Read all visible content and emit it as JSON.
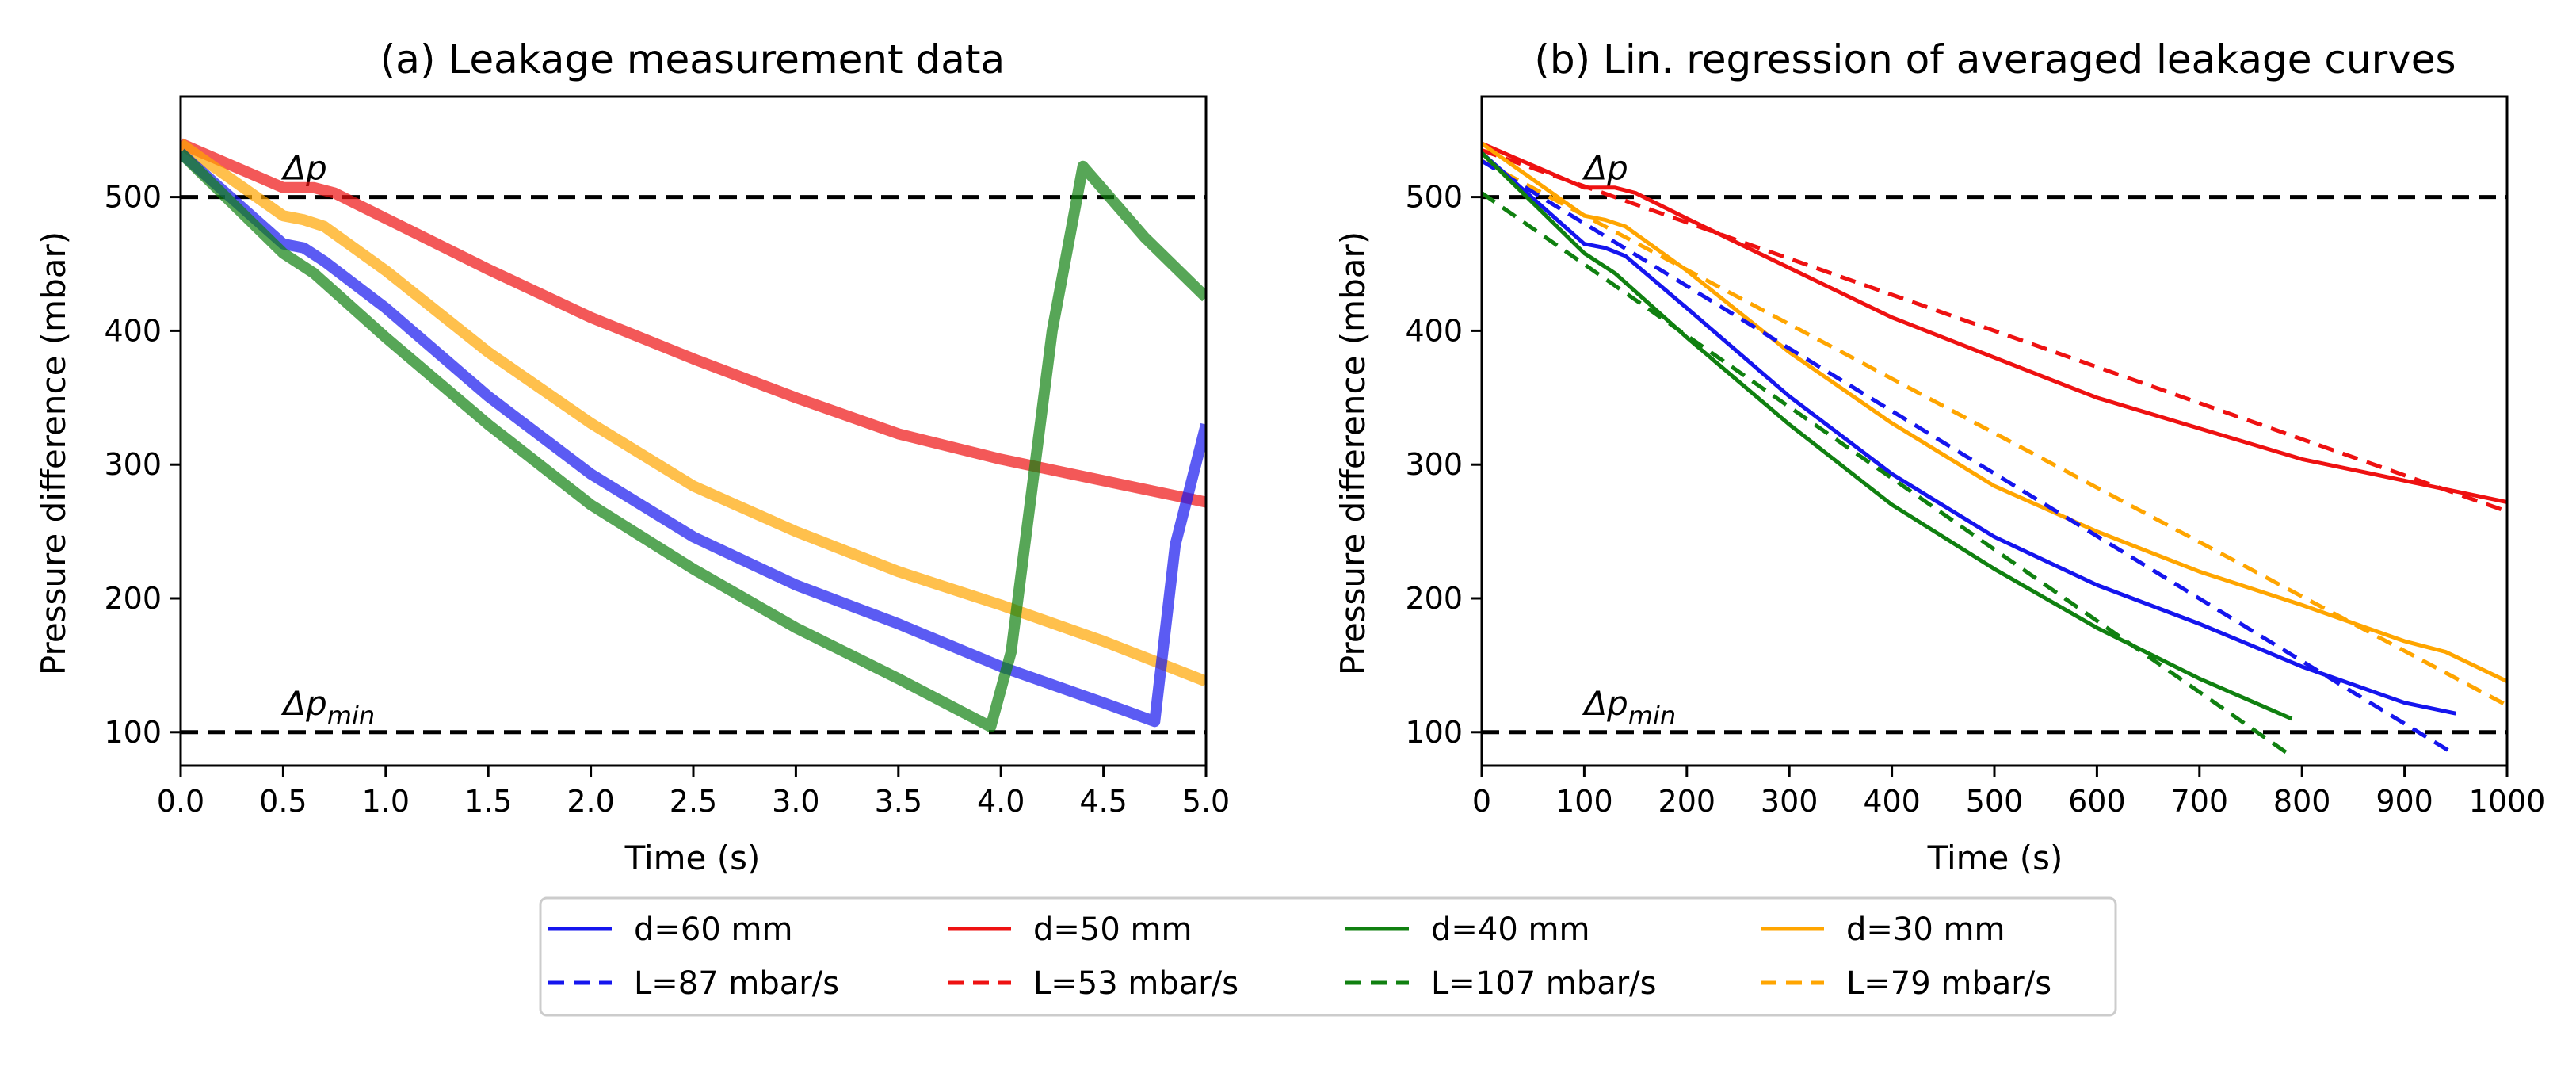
{
  "chart_data": [
    {
      "type": "line",
      "title": "(a) Leakage measurement data",
      "xlabel": "Time (s)",
      "ylabel": "Pressure difference (mbar)",
      "xlim": [
        0,
        5
      ],
      "ylim": [
        75,
        575
      ],
      "xticks": [
        0.0,
        0.5,
        1.0,
        1.5,
        2.0,
        2.5,
        3.0,
        3.5,
        4.0,
        4.5,
        5.0
      ],
      "xtick_labels": [
        "0.0",
        "0.5",
        "1.0",
        "1.5",
        "2.0",
        "2.5",
        "3.0",
        "3.5",
        "4.0",
        "4.5",
        "5.0"
      ],
      "yticks": [
        100,
        200,
        300,
        400,
        500
      ],
      "ytick_labels": [
        "100",
        "200",
        "300",
        "400",
        "500"
      ],
      "reference_lines": [
        {
          "y": 500,
          "label": "Δp",
          "label_main": "Δp",
          "label_sub": ""
        },
        {
          "y": 100,
          "label": "Δpmin",
          "label_main": "Δp",
          "label_sub": "min"
        }
      ],
      "series": [
        {
          "name": "d=50 mm",
          "color": "#ee1111",
          "style": "solid",
          "x": [
            0,
            0.5,
            0.65,
            0.75,
            1.0,
            1.5,
            2.0,
            2.5,
            3.0,
            3.5,
            4.0,
            4.5,
            5.0
          ],
          "y": [
            540,
            507,
            507,
            503,
            484,
            446,
            410,
            379,
            350,
            323,
            304,
            288,
            272
          ]
        },
        {
          "name": "d=30 mm",
          "color": "#ffa500",
          "style": "solid",
          "x": [
            0,
            0.5,
            0.6,
            0.7,
            1.0,
            1.5,
            2.0,
            2.5,
            3.0,
            3.5,
            4.0,
            4.5,
            5.0
          ],
          "y": [
            540,
            486,
            483,
            478,
            445,
            384,
            331,
            284,
            250,
            220,
            195,
            168,
            138
          ]
        },
        {
          "name": "d=60 mm",
          "color": "#1515ee",
          "style": "solid",
          "x": [
            0,
            0.5,
            0.6,
            0.7,
            1.0,
            1.5,
            2.0,
            2.5,
            3.0,
            3.5,
            4.0,
            4.5,
            4.75,
            4.85,
            4.95,
            5.0
          ],
          "y": [
            533,
            465,
            462,
            452,
            417,
            351,
            293,
            246,
            210,
            181,
            149,
            122,
            108,
            240,
            300,
            330
          ]
        },
        {
          "name": "d=40 mm",
          "color": "#108010",
          "style": "solid",
          "x": [
            0,
            0.5,
            0.65,
            1.0,
            1.5,
            2.0,
            2.5,
            3.0,
            3.5,
            3.95,
            4.05,
            4.25,
            4.4,
            4.7,
            5.0
          ],
          "y": [
            533,
            458,
            443,
            395,
            330,
            270,
            222,
            178,
            140,
            104,
            160,
            400,
            523,
            470,
            425
          ]
        }
      ]
    },
    {
      "type": "line",
      "title": "(b) Lin. regression of averaged leakage curves",
      "xlabel": "Time (s)",
      "ylabel": "Pressure difference (mbar)",
      "xlim": [
        0,
        1000
      ],
      "ylim": [
        75,
        575
      ],
      "xticks": [
        0,
        100,
        200,
        300,
        400,
        500,
        600,
        700,
        800,
        900,
        1000
      ],
      "xtick_labels": [
        "0",
        "100",
        "200",
        "300",
        "400",
        "500",
        "600",
        "700",
        "800",
        "900",
        "1000"
      ],
      "yticks": [
        100,
        200,
        300,
        400,
        500
      ],
      "ytick_labels": [
        "100",
        "200",
        "300",
        "400",
        "500"
      ],
      "reference_lines": [
        {
          "y": 500,
          "label": "Δp",
          "label_main": "Δp",
          "label_sub": ""
        },
        {
          "y": 100,
          "label": "Δpmin",
          "label_main": "Δp",
          "label_sub": "min"
        }
      ],
      "series": [
        {
          "name": "d=50 mm",
          "color": "#ee1111",
          "style": "solid",
          "x": [
            0,
            100,
            130,
            150,
            200,
            400,
            600,
            800,
            1000
          ],
          "y": [
            540,
            507,
            507,
            503,
            484,
            410,
            350,
            304,
            272
          ]
        },
        {
          "name": "L=53 mbar/s",
          "color": "#ee1111",
          "style": "dashed",
          "x": [
            0,
            1000
          ],
          "y": [
            535,
            265
          ]
        },
        {
          "name": "d=30 mm",
          "color": "#ffa500",
          "style": "solid",
          "x": [
            0,
            100,
            120,
            140,
            200,
            300,
            400,
            500,
            600,
            700,
            800,
            900,
            940,
            1000
          ],
          "y": [
            540,
            486,
            483,
            478,
            445,
            384,
            331,
            284,
            250,
            220,
            195,
            168,
            160,
            138
          ]
        },
        {
          "name": "L=79 mbar/s",
          "color": "#ffa500",
          "style": "dashed",
          "x": [
            0,
            1000
          ],
          "y": [
            527,
            120
          ]
        },
        {
          "name": "d=60 mm",
          "color": "#1515ee",
          "style": "solid",
          "x": [
            0,
            100,
            120,
            140,
            200,
            300,
            400,
            500,
            600,
            700,
            800,
            900,
            950
          ],
          "y": [
            533,
            465,
            462,
            456,
            417,
            351,
            293,
            246,
            210,
            181,
            149,
            122,
            114
          ]
        },
        {
          "name": "L=87 mbar/s",
          "color": "#1515ee",
          "style": "dashed",
          "x": [
            0,
            950
          ],
          "y": [
            527,
            83
          ]
        },
        {
          "name": "d=40 mm",
          "color": "#108010",
          "style": "solid",
          "x": [
            0,
            100,
            130,
            200,
            300,
            400,
            500,
            600,
            700,
            790
          ],
          "y": [
            533,
            458,
            443,
            395,
            330,
            270,
            222,
            178,
            140,
            110
          ]
        },
        {
          "name": "L=107 mbar/s",
          "color": "#108010",
          "style": "dashed",
          "x": [
            0,
            790
          ],
          "y": [
            503,
            82
          ]
        }
      ]
    }
  ],
  "legend": {
    "location": "bottom-center",
    "entries": [
      {
        "label": "d=60 mm",
        "color": "#1515ee",
        "style": "solid"
      },
      {
        "label": "d=50 mm",
        "color": "#ee1111",
        "style": "solid"
      },
      {
        "label": "d=40 mm",
        "color": "#108010",
        "style": "solid"
      },
      {
        "label": "d=30 mm",
        "color": "#ffa500",
        "style": "solid"
      },
      {
        "label": "L=87 mbar/s",
        "color": "#1515ee",
        "style": "dashed"
      },
      {
        "label": "L=53 mbar/s",
        "color": "#ee1111",
        "style": "dashed"
      },
      {
        "label": "L=107 mbar/s",
        "color": "#108010",
        "style": "dashed"
      },
      {
        "label": "L=79 mbar/s",
        "color": "#ffa500",
        "style": "dashed"
      }
    ]
  }
}
